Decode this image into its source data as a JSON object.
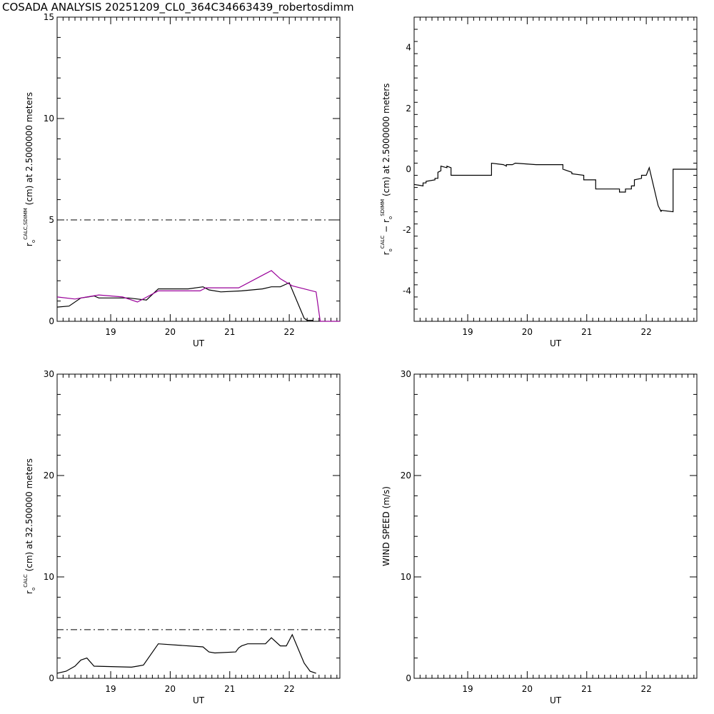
{
  "title": "COSADA ANALYSIS  20251209_CL0_364C34663439_robertosdimm",
  "colors": {
    "axis": "#000000",
    "series_sdimm": "#990099",
    "series_calc": "#000000"
  },
  "chart_data": [
    {
      "type": "line",
      "panel": "top-left",
      "xlabel": "UT",
      "ylabel_parts": [
        "r",
        "o",
        "CALC,SDIMM",
        " (cm)  at  2.5000000 meters"
      ],
      "xlim": [
        18.1,
        22.85
      ],
      "ylim": [
        0,
        15
      ],
      "xticks": [
        19,
        20,
        21,
        22
      ],
      "yticks": [
        0,
        5,
        10,
        15
      ],
      "reference_line": {
        "y": 5,
        "style": "dash-dot"
      },
      "series": [
        {
          "color": "#000000",
          "x": [
            18.1,
            18.1,
            18.3,
            18.3,
            18.5,
            18.5,
            18.62,
            18.62,
            18.72,
            18.72,
            18.8,
            18.8,
            19.0,
            19.0,
            19.3,
            19.3,
            19.45,
            19.45,
            19.6,
            19.6,
            19.8,
            19.8,
            20.3,
            20.3,
            20.55,
            20.55,
            20.65,
            20.65,
            20.85,
            20.85,
            21.2,
            21.2,
            21.55,
            21.55,
            21.7,
            21.7,
            21.85,
            21.85,
            22.0,
            22.25,
            22.25,
            22.3,
            22.4
          ],
          "y": [
            0.7,
            0.7,
            0.75,
            0.75,
            1.15,
            1.15,
            1.2,
            1.2,
            1.25,
            1.25,
            1.15,
            1.15,
            1.15,
            1.15,
            1.15,
            1.15,
            1.1,
            1.1,
            1.05,
            1.05,
            1.6,
            1.6,
            1.6,
            1.6,
            1.7,
            1.7,
            1.55,
            1.55,
            1.45,
            1.45,
            1.5,
            1.5,
            1.6,
            1.6,
            1.7,
            1.7,
            1.7,
            1.7,
            1.9,
            0.15,
            0.15,
            0.05,
            0.05
          ]
        },
        {
          "color": "#990099",
          "x": [
            18.1,
            18.1,
            18.4,
            18.4,
            18.6,
            18.6,
            18.8,
            18.8,
            19.2,
            19.2,
            19.45,
            19.45,
            19.8,
            19.8,
            20.5,
            20.5,
            20.6,
            20.6,
            21.15,
            21.15,
            21.6,
            21.6,
            21.7,
            21.7,
            21.85,
            21.85,
            22.05,
            22.05,
            22.25,
            22.25,
            22.45,
            22.45,
            22.52,
            22.52,
            22.85
          ],
          "y": [
            1.2,
            1.2,
            1.1,
            1.1,
            1.2,
            1.2,
            1.3,
            1.3,
            1.2,
            1.2,
            0.95,
            0.95,
            1.5,
            1.5,
            1.5,
            1.5,
            1.65,
            1.65,
            1.65,
            1.65,
            2.35,
            2.35,
            2.5,
            2.5,
            2.1,
            2.1,
            1.75,
            1.75,
            1.6,
            1.6,
            1.45,
            1.45,
            0.0,
            0.0,
            0.0
          ]
        }
      ]
    },
    {
      "type": "line",
      "panel": "top-right",
      "xlabel": "UT",
      "ylabel_parts": [
        "r",
        "o",
        "CALC",
        "  −  r",
        "o",
        "SDIMM",
        " (cm)  at  2.5000000 meters"
      ],
      "xlim": [
        18.1,
        22.85
      ],
      "ylim": [
        -5,
        5
      ],
      "xticks": [
        19,
        20,
        21,
        22
      ],
      "yticks": [
        -4,
        -2,
        0,
        2,
        4
      ],
      "series": [
        {
          "color": "#000000",
          "x": [
            18.1,
            18.25,
            18.25,
            18.3,
            18.3,
            18.45,
            18.45,
            18.5,
            18.5,
            18.55,
            18.55,
            18.65,
            18.65,
            18.72,
            18.72,
            19.0,
            19.0,
            19.4,
            19.4,
            19.6,
            19.6,
            19.65,
            19.65,
            19.75,
            19.75,
            19.8,
            19.8,
            20.15,
            20.15,
            20.6,
            20.6,
            20.75,
            20.75,
            20.95,
            20.95,
            21.15,
            21.15,
            21.3,
            21.3,
            21.55,
            21.55,
            21.65,
            21.65,
            21.75,
            21.75,
            21.8,
            21.8,
            21.92,
            21.92,
            22.0,
            22.05,
            22.2,
            22.25,
            22.25,
            22.45,
            22.45,
            22.85
          ],
          "y": [
            -0.5,
            -0.55,
            -0.45,
            -0.45,
            -0.4,
            -0.35,
            -0.3,
            -0.3,
            -0.1,
            -0.05,
            0.1,
            0.05,
            0.1,
            0.05,
            -0.2,
            -0.2,
            -0.2,
            -0.2,
            0.2,
            0.15,
            0.15,
            0.1,
            0.15,
            0.15,
            0.15,
            0.2,
            0.2,
            0.15,
            0.15,
            0.15,
            0.0,
            -0.1,
            -0.15,
            -0.2,
            -0.35,
            -0.35,
            -0.65,
            -0.65,
            -0.65,
            -0.65,
            -0.75,
            -0.75,
            -0.65,
            -0.65,
            -0.55,
            -0.55,
            -0.35,
            -0.3,
            -0.2,
            -0.2,
            0.05,
            -1.2,
            -1.4,
            -1.35,
            -1.4,
            0.0,
            0.0
          ]
        }
      ]
    },
    {
      "type": "line",
      "panel": "bottom-left",
      "xlabel": "UT",
      "ylabel_parts": [
        "r",
        "o",
        "CALC",
        " (cm)  at  32.500000 meters"
      ],
      "xlim": [
        18.1,
        22.85
      ],
      "ylim": [
        0,
        30
      ],
      "xticks": [
        19,
        20,
        21,
        22
      ],
      "yticks": [
        0,
        10,
        20,
        30
      ],
      "reference_line": {
        "y": 4.8,
        "style": "dash-dot"
      },
      "series": [
        {
          "color": "#000000",
          "x": [
            18.1,
            18.1,
            18.25,
            18.25,
            18.4,
            18.4,
            18.45,
            18.45,
            18.5,
            18.5,
            18.6,
            18.6,
            18.72,
            18.72,
            19.35,
            19.35,
            19.45,
            19.45,
            19.55,
            19.55,
            19.8,
            19.8,
            20.55,
            20.55,
            20.65,
            20.65,
            20.75,
            20.75,
            21.1,
            21.1,
            21.15,
            21.15,
            21.2,
            21.2,
            21.3,
            21.3,
            21.6,
            21.6,
            21.7,
            21.7,
            21.85,
            21.85,
            21.95,
            21.95,
            22.05,
            22.25,
            22.25,
            22.35,
            22.35,
            22.45
          ],
          "y": [
            0.5,
            0.5,
            0.7,
            0.7,
            1.2,
            1.2,
            1.5,
            1.5,
            1.8,
            1.8,
            2.0,
            2.0,
            1.2,
            1.2,
            1.1,
            1.1,
            1.2,
            1.2,
            1.3,
            1.3,
            3.4,
            3.4,
            3.1,
            3.1,
            2.6,
            2.6,
            2.5,
            2.5,
            2.6,
            2.6,
            3.0,
            3.0,
            3.2,
            3.2,
            3.4,
            3.4,
            3.4,
            3.4,
            4.0,
            4.0,
            3.2,
            3.2,
            3.2,
            3.2,
            4.3,
            1.5,
            1.5,
            0.7,
            0.7,
            0.5
          ]
        }
      ]
    },
    {
      "type": "line",
      "panel": "bottom-right",
      "xlabel": "UT",
      "ylabel_parts": [
        "WIND SPEED (m/s)"
      ],
      "xlim": [
        18.1,
        22.85
      ],
      "ylim": [
        0,
        30
      ],
      "xticks": [
        19,
        20,
        21,
        22
      ],
      "yticks": [
        0,
        10,
        20,
        30
      ],
      "series": []
    }
  ]
}
